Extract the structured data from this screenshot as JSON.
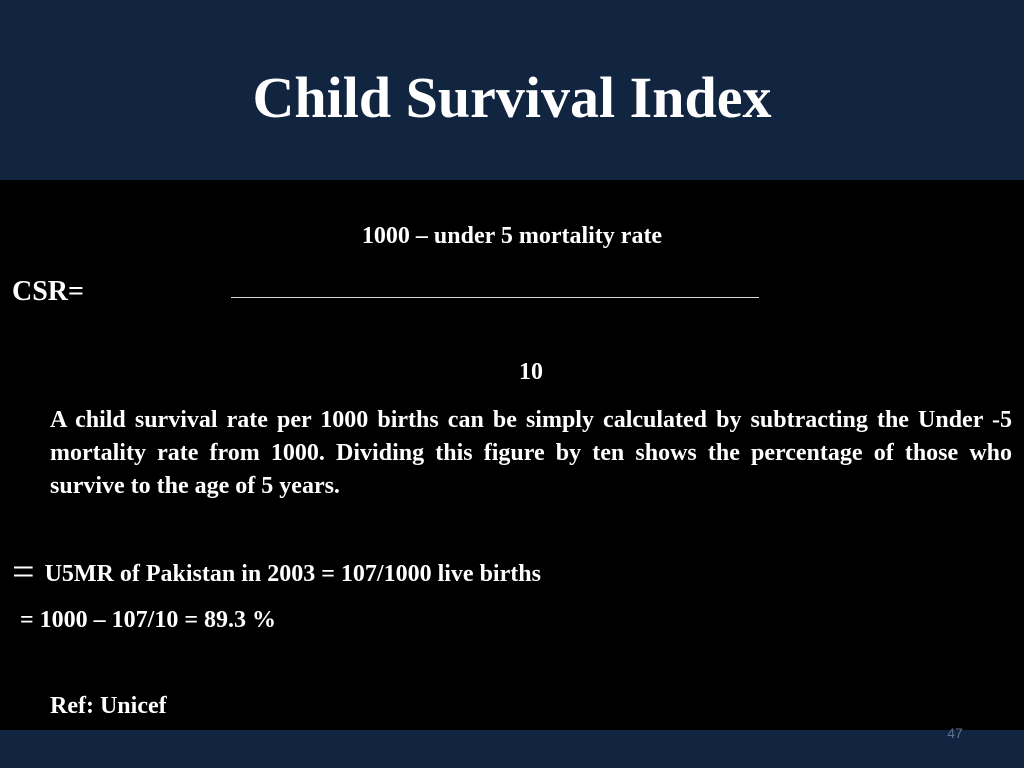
{
  "slide": {
    "title": "Child Survival Index",
    "formula": {
      "label": "CSR=",
      "numerator": "1000 – under 5 mortality rate",
      "denominator": "10"
    },
    "explanation": "A child survival rate per 1000 births can be simply calculated by subtracting the Under -5 mortality rate from 1000. Dividing this figure by ten shows the percentage of those who survive to the age of 5 years.",
    "example": {
      "bullet": "=",
      "text": "U5MR of Pakistan in 2003 = 107/1000 live births"
    },
    "calculation": "= 1000 – 107/10 = 89.3 %",
    "reference": "Ref: Unicef",
    "page_number": "47"
  },
  "colors": {
    "header_background": "#112440",
    "content_background": "#000000",
    "text": "#ffffff",
    "page_number": "#5f7390"
  }
}
